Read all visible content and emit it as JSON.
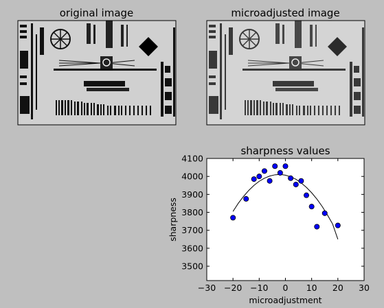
{
  "panels": {
    "left_title": "original image",
    "right_title": "microadjusted image"
  },
  "chart_data": {
    "type": "scatter",
    "title": "sharpness values",
    "xlabel": "microadjustment",
    "ylabel": "sharpness",
    "xlim": [
      -30,
      30
    ],
    "ylim": [
      3420,
      4100
    ],
    "xticks": [
      -30,
      -20,
      -10,
      0,
      10,
      20,
      30
    ],
    "yticks": [
      3500,
      3600,
      3700,
      3800,
      3900,
      4000,
      4100
    ],
    "grid": false,
    "points": {
      "x": [
        -20,
        -15,
        -12,
        -10,
        -8,
        -6,
        -4,
        -2,
        0,
        2,
        4,
        6,
        8,
        10,
        12,
        15,
        20
      ],
      "y": [
        3770,
        3875,
        3985,
        4000,
        4030,
        3975,
        4057,
        4020,
        4057,
        3990,
        3955,
        3975,
        3895,
        3832,
        3720,
        3795,
        3727
      ]
    },
    "fit_curve": {
      "x": [
        -20,
        -18,
        -16,
        -14,
        -12,
        -10,
        -8,
        -6,
        -4,
        -2,
        0,
        2,
        4,
        6,
        8,
        10,
        12,
        14,
        16,
        18,
        20
      ],
      "y": [
        3805,
        3850,
        3888,
        3922,
        3950,
        3973,
        3990,
        4002,
        4009,
        4011,
        4007,
        3998,
        3984,
        3964,
        3939,
        3909,
        3874,
        3833,
        3786,
        3735,
        3650
      ]
    },
    "marker_color": "#0000ff",
    "line_color": "#000000"
  }
}
